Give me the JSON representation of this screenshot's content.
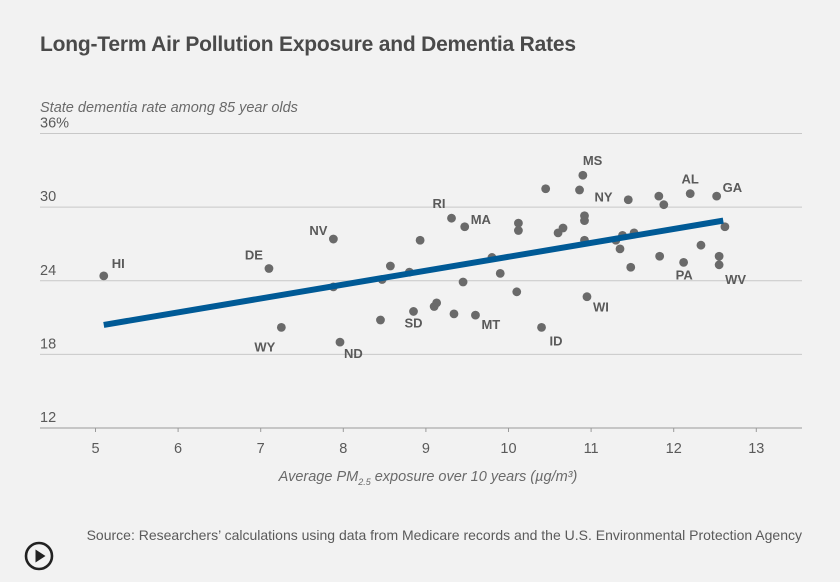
{
  "chart_data": {
    "type": "scatter",
    "title": "Long-Term Air Pollution Exposure and Dementia Rates",
    "ylabel": "State dementia rate among 85 year olds",
    "xlabel_parts": {
      "pre": "Average PM",
      "sub": "2.5",
      "post": " exposure over 10 years (µg/m³)"
    },
    "xlim": [
      4.5,
      13.5
    ],
    "ylim": [
      12,
      36
    ],
    "xticks": [
      5,
      6,
      7,
      8,
      9,
      10,
      11,
      12,
      13
    ],
    "yticks": [
      12,
      18,
      24,
      30,
      36
    ],
    "ytick_labels": [
      "12",
      "18",
      "24",
      "30",
      "36%"
    ],
    "grid": true,
    "points": [
      {
        "x": 5.1,
        "y": 24.4,
        "label": "HI"
      },
      {
        "x": 7.1,
        "y": 25.0,
        "label": "DE"
      },
      {
        "x": 7.25,
        "y": 20.2,
        "label": "WY"
      },
      {
        "x": 7.88,
        "y": 27.4,
        "label": "NV"
      },
      {
        "x": 7.88,
        "y": 23.5
      },
      {
        "x": 7.96,
        "y": 19.0,
        "label": "ND"
      },
      {
        "x": 8.45,
        "y": 20.8
      },
      {
        "x": 8.47,
        "y": 24.1
      },
      {
        "x": 8.57,
        "y": 25.2
      },
      {
        "x": 8.8,
        "y": 24.7
      },
      {
        "x": 8.85,
        "y": 21.5,
        "label": "SD"
      },
      {
        "x": 8.93,
        "y": 27.3
      },
      {
        "x": 9.1,
        "y": 21.9
      },
      {
        "x": 9.13,
        "y": 22.2
      },
      {
        "x": 9.31,
        "y": 29.1,
        "label": "RI"
      },
      {
        "x": 9.34,
        "y": 21.3
      },
      {
        "x": 9.45,
        "y": 23.9
      },
      {
        "x": 9.47,
        "y": 28.4,
        "label": "MA"
      },
      {
        "x": 9.6,
        "y": 21.2,
        "label": "MT"
      },
      {
        "x": 9.8,
        "y": 25.9
      },
      {
        "x": 9.9,
        "y": 24.6
      },
      {
        "x": 10.1,
        "y": 23.1
      },
      {
        "x": 10.12,
        "y": 28.7
      },
      {
        "x": 10.12,
        "y": 28.1
      },
      {
        "x": 10.4,
        "y": 20.2,
        "label": "ID"
      },
      {
        "x": 10.45,
        "y": 31.5
      },
      {
        "x": 10.6,
        "y": 27.9
      },
      {
        "x": 10.66,
        "y": 28.3
      },
      {
        "x": 10.86,
        "y": 31.4
      },
      {
        "x": 10.9,
        "y": 32.6,
        "label": "MS"
      },
      {
        "x": 10.92,
        "y": 29.3,
        "label": "NY"
      },
      {
        "x": 10.92,
        "y": 28.9
      },
      {
        "x": 10.92,
        "y": 27.3
      },
      {
        "x": 10.95,
        "y": 22.7,
        "label": "WI"
      },
      {
        "x": 11.3,
        "y": 27.3
      },
      {
        "x": 11.35,
        "y": 26.6
      },
      {
        "x": 11.38,
        "y": 27.7
      },
      {
        "x": 11.45,
        "y": 30.6
      },
      {
        "x": 11.48,
        "y": 25.1
      },
      {
        "x": 11.52,
        "y": 27.9
      },
      {
        "x": 11.82,
        "y": 30.9
      },
      {
        "x": 11.83,
        "y": 26.0
      },
      {
        "x": 11.88,
        "y": 30.2
      },
      {
        "x": 12.12,
        "y": 25.5,
        "label": "PA"
      },
      {
        "x": 12.2,
        "y": 31.1,
        "label": "AL"
      },
      {
        "x": 12.33,
        "y": 26.9
      },
      {
        "x": 12.52,
        "y": 30.9,
        "label": "GA"
      },
      {
        "x": 12.55,
        "y": 26.0
      },
      {
        "x": 12.55,
        "y": 25.3,
        "label": "WV"
      },
      {
        "x": 12.62,
        "y": 28.4
      }
    ],
    "trendline": {
      "x1": 5.1,
      "y1": 20.4,
      "x2": 12.6,
      "y2": 28.9,
      "color": "#005a96"
    },
    "point_color": "#6a6a6a"
  },
  "source": "Source: Researchers’ calculations using data from Medicare records and the U.S. Environmental Protection Agency",
  "logo_icon": "play-circle-icon"
}
